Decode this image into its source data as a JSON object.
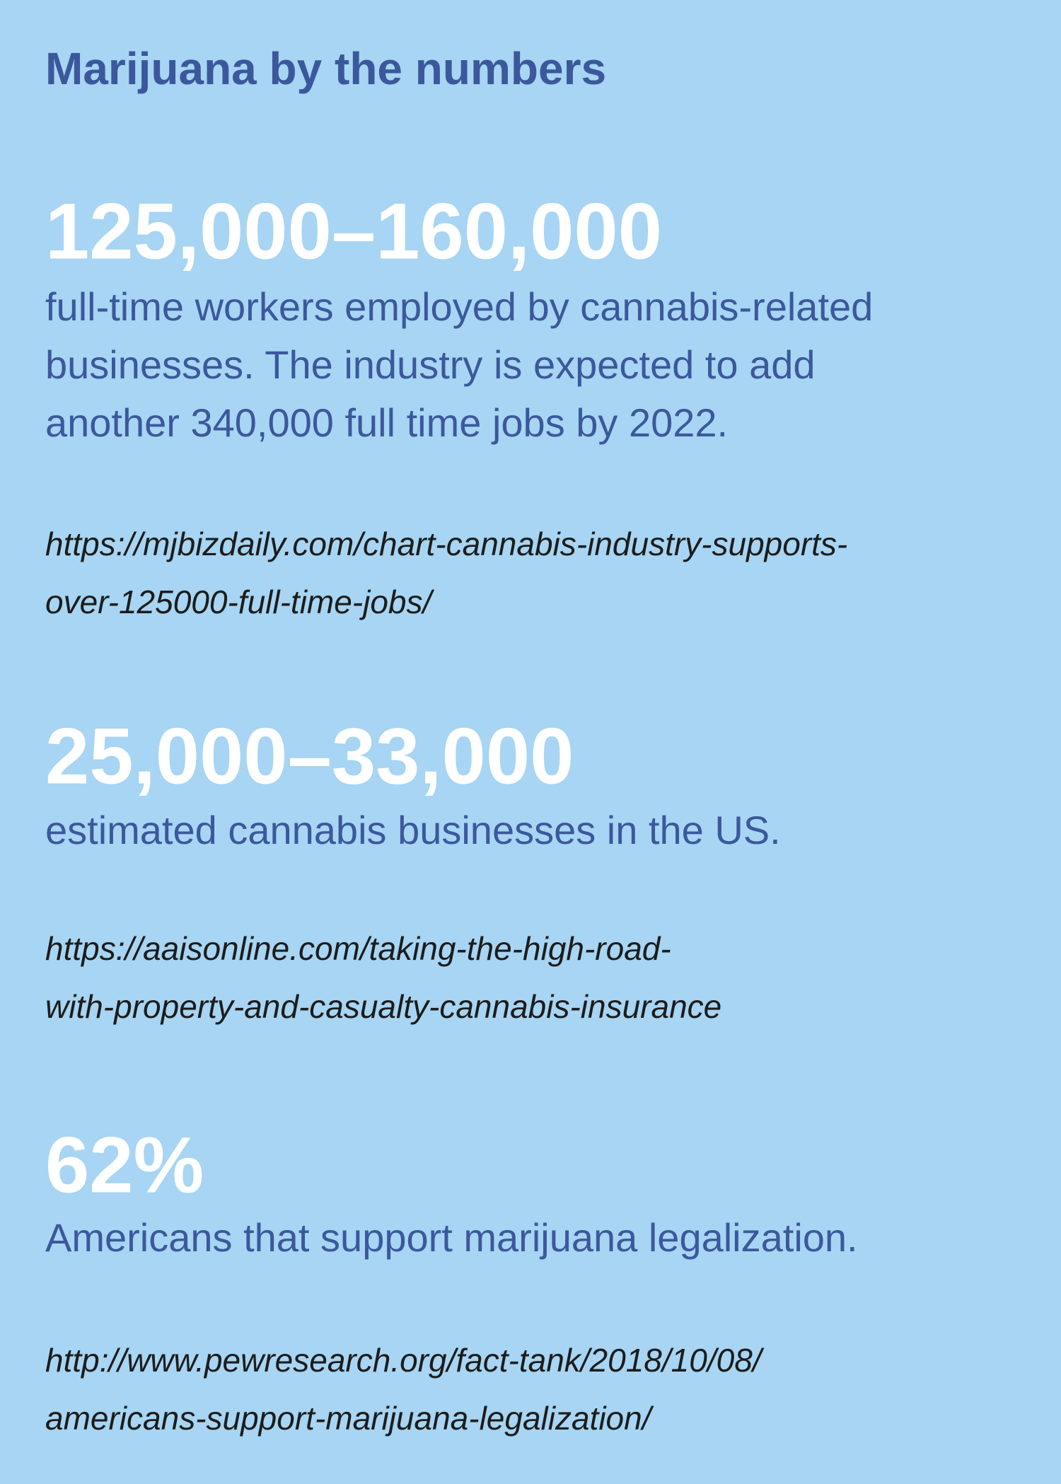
{
  "title": "Marijuana by the numbers",
  "items": [
    {
      "stat": "125,000–160,000",
      "description_lines": [
        "full-time workers employed by cannabis-related",
        "businesses. The industry is expected to add",
        "another 340,000 full time jobs by 2022."
      ],
      "source_lines": [
        "https://mjbizdaily.com/chart-cannabis-industry-supports-",
        "over-125000-full-time-jobs/"
      ]
    },
    {
      "stat": "25,000–33,000",
      "description_lines": [
        "estimated cannabis businesses in the US."
      ],
      "source_lines": [
        "https://aaisonline.com/taking-the-high-road-",
        "with-property-and-casualty-cannabis-insurance"
      ]
    },
    {
      "stat": "62%",
      "description_lines": [
        "Americans that support marijuana legalization."
      ],
      "source_lines": [
        "http://www.pewresearch.org/fact-tank/2018/10/08/",
        "americans-support-marijuana-legalization/"
      ]
    }
  ]
}
